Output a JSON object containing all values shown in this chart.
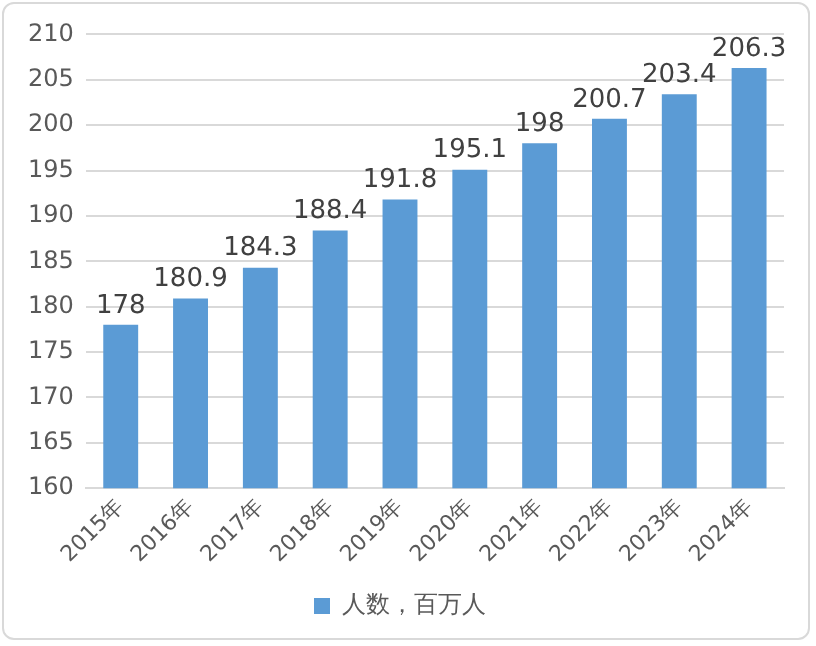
{
  "chart_data": {
    "type": "bar",
    "categories": [
      "2015年",
      "2016年",
      "2017年",
      "2018年",
      "2019年",
      "2020年",
      "2021年",
      "2022年",
      "2023年",
      "2024年"
    ],
    "series": [
      {
        "name": "人数，百万人",
        "color": "#5b9bd5",
        "values": [
          178,
          180.9,
          184.3,
          188.4,
          191.8,
          195.1,
          198,
          200.7,
          203.4,
          206.3
        ]
      }
    ],
    "ylim": [
      160,
      210
    ],
    "yticks": [
      160,
      165,
      170,
      175,
      180,
      185,
      190,
      195,
      200,
      205,
      210
    ],
    "grid": "y",
    "legend": "bottom",
    "data_labels": true
  }
}
